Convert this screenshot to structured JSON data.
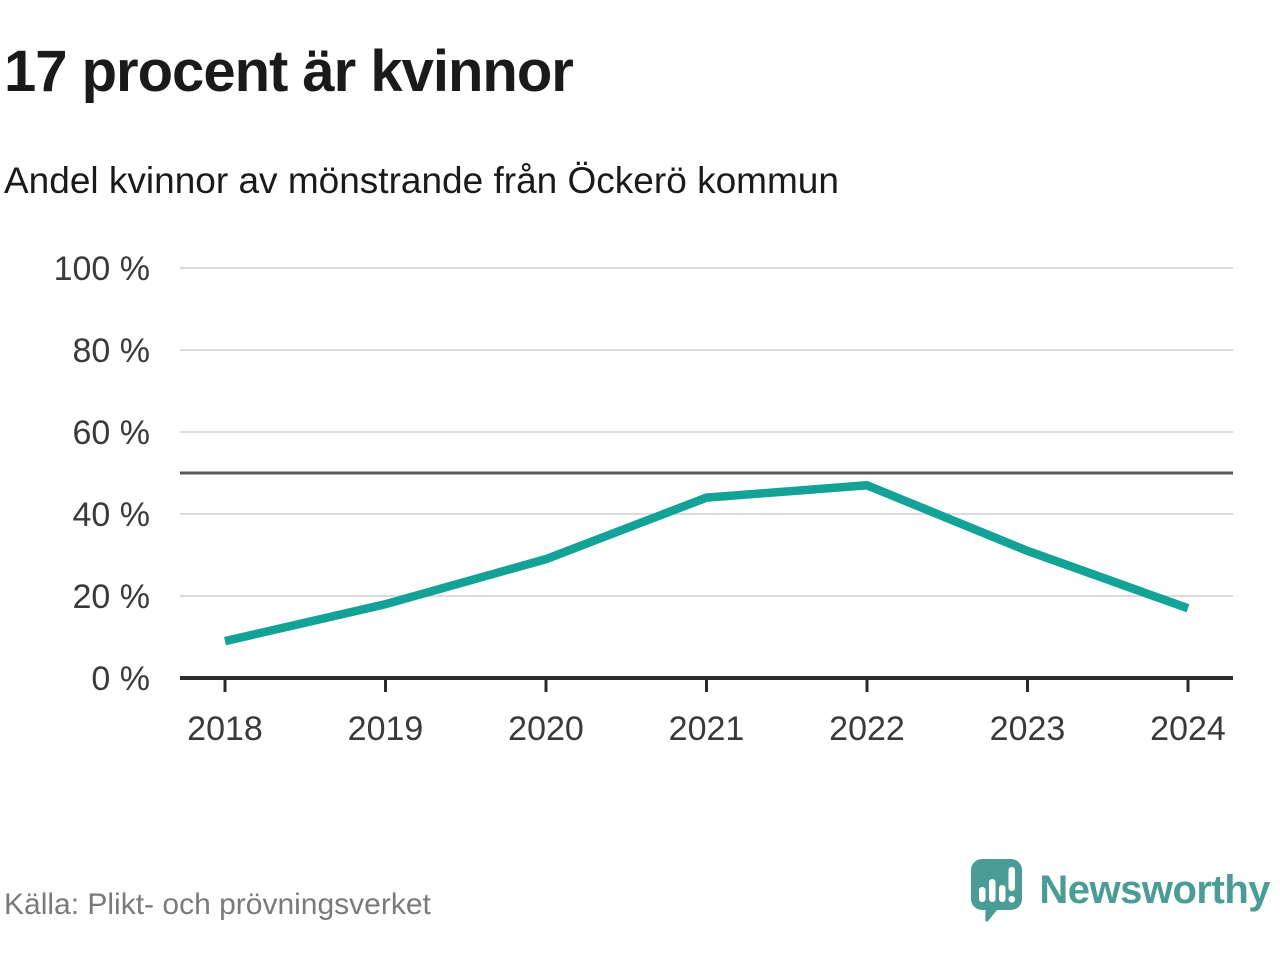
{
  "header": {
    "title": "17 procent är kvinnor",
    "subtitle": "Andel kvinnor av mönstrande från Öckerö kommun"
  },
  "chart_data": {
    "type": "line",
    "x": [
      "2018",
      "2019",
      "2020",
      "2021",
      "2022",
      "2023",
      "2024"
    ],
    "series": [
      {
        "name": "Andel kvinnor av mönstrande",
        "values": [
          9,
          18,
          29,
          44,
          47,
          31,
          17
        ]
      }
    ],
    "unit": "%",
    "ylim": [
      0,
      100
    ],
    "yticks": [
      0,
      20,
      40,
      60,
      80,
      100
    ],
    "ytick_suffix": " %",
    "reference_line": 50,
    "grid": true,
    "legend": "none",
    "colors": {
      "line": "#12a296",
      "grid": "#dcdcdc",
      "reference": "#57575c",
      "axis": "#2b2b2b",
      "tick_label": "#3a3a3a"
    }
  },
  "footer": {
    "source": "Källa: Plikt- och prövningsverket",
    "brand": "Newsworthy",
    "brand_color": "#4a9c95",
    "logo_icon": "speech-bubble-bar-chart-exclamation"
  }
}
